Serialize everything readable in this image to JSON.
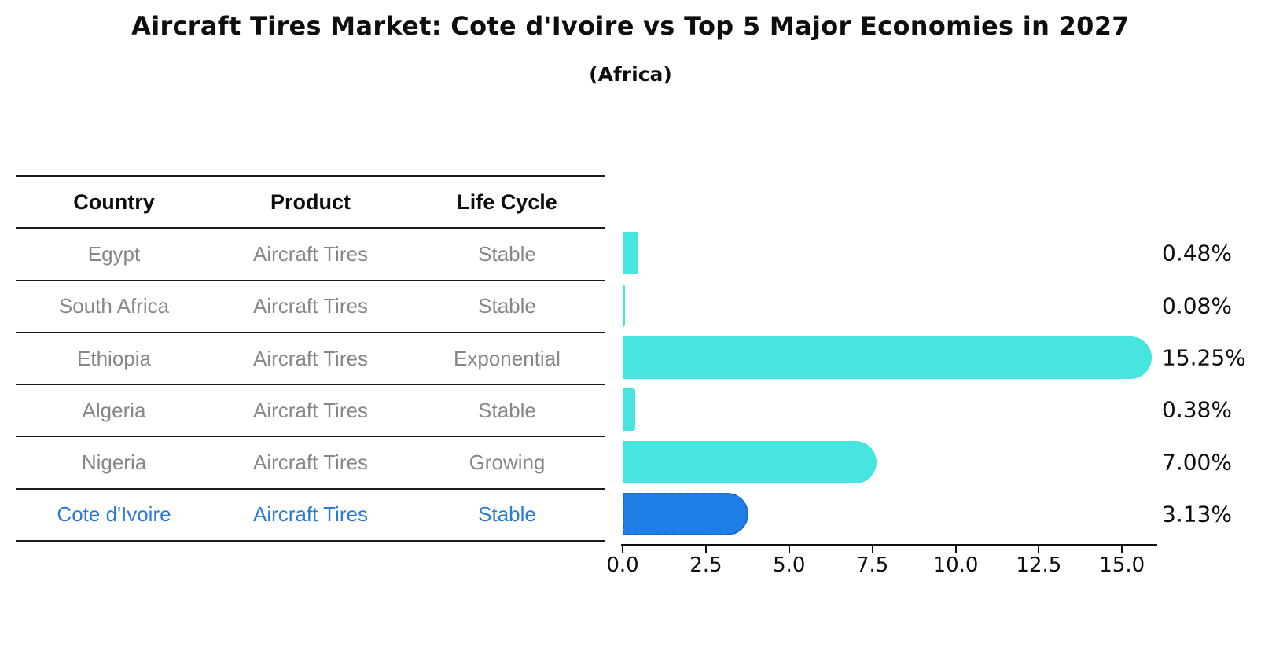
{
  "title": "Aircraft Tires Market: Cote d'Ivoire vs Top 5 Major Economies in 2027",
  "subtitle": "(Africa)",
  "table": {
    "headers": [
      "Country",
      "Product",
      "Life Cycle"
    ],
    "rows": [
      {
        "country": "Egypt",
        "product": "Aircraft Tires",
        "life_cycle": "Stable",
        "highlight": false
      },
      {
        "country": "South Africa",
        "product": "Aircraft Tires",
        "life_cycle": "Stable",
        "highlight": false
      },
      {
        "country": "Ethiopia",
        "product": "Aircraft Tires",
        "life_cycle": "Exponential",
        "highlight": false
      },
      {
        "country": "Algeria",
        "product": "Aircraft Tires",
        "life_cycle": "Stable",
        "highlight": false
      },
      {
        "country": "Nigeria",
        "product": "Aircraft Tires",
        "life_cycle": "Growing",
        "highlight": false
      },
      {
        "country": "Cote d'Ivoire",
        "product": "Aircraft Tires",
        "life_cycle": "Stable",
        "highlight": true
      }
    ]
  },
  "chart_data": {
    "type": "bar",
    "orientation": "horizontal",
    "title": "Aircraft Tires Market: Cote d'Ivoire vs Top 5 Major Economies in 2027",
    "subtitle": "(Africa)",
    "categories": [
      "Egypt",
      "South Africa",
      "Ethiopia",
      "Algeria",
      "Nigeria",
      "Cote d'Ivoire"
    ],
    "values": [
      0.48,
      0.08,
      15.25,
      0.38,
      7.0,
      3.13
    ],
    "value_labels": [
      "0.48%",
      "0.08%",
      "15.25%",
      "0.38%",
      "7.00%",
      "3.13%"
    ],
    "highlight_index": 5,
    "x_ticks": [
      "0.0",
      "2.5",
      "5.0",
      "7.5",
      "10.0",
      "12.5",
      "15.0"
    ],
    "x_tick_values": [
      0,
      2.5,
      5,
      7.5,
      10,
      12.5,
      15
    ],
    "xlim": [
      0,
      16
    ],
    "grid": false,
    "legend": "none"
  },
  "colors": {
    "bar": "#46E5E0",
    "highlight_bar": "#1E7EE6",
    "highlight_bar_border": "#1863C8",
    "highlight_text": "#2B7BD4",
    "table_text": "#878787",
    "heading_text": "#0E0E0E"
  }
}
